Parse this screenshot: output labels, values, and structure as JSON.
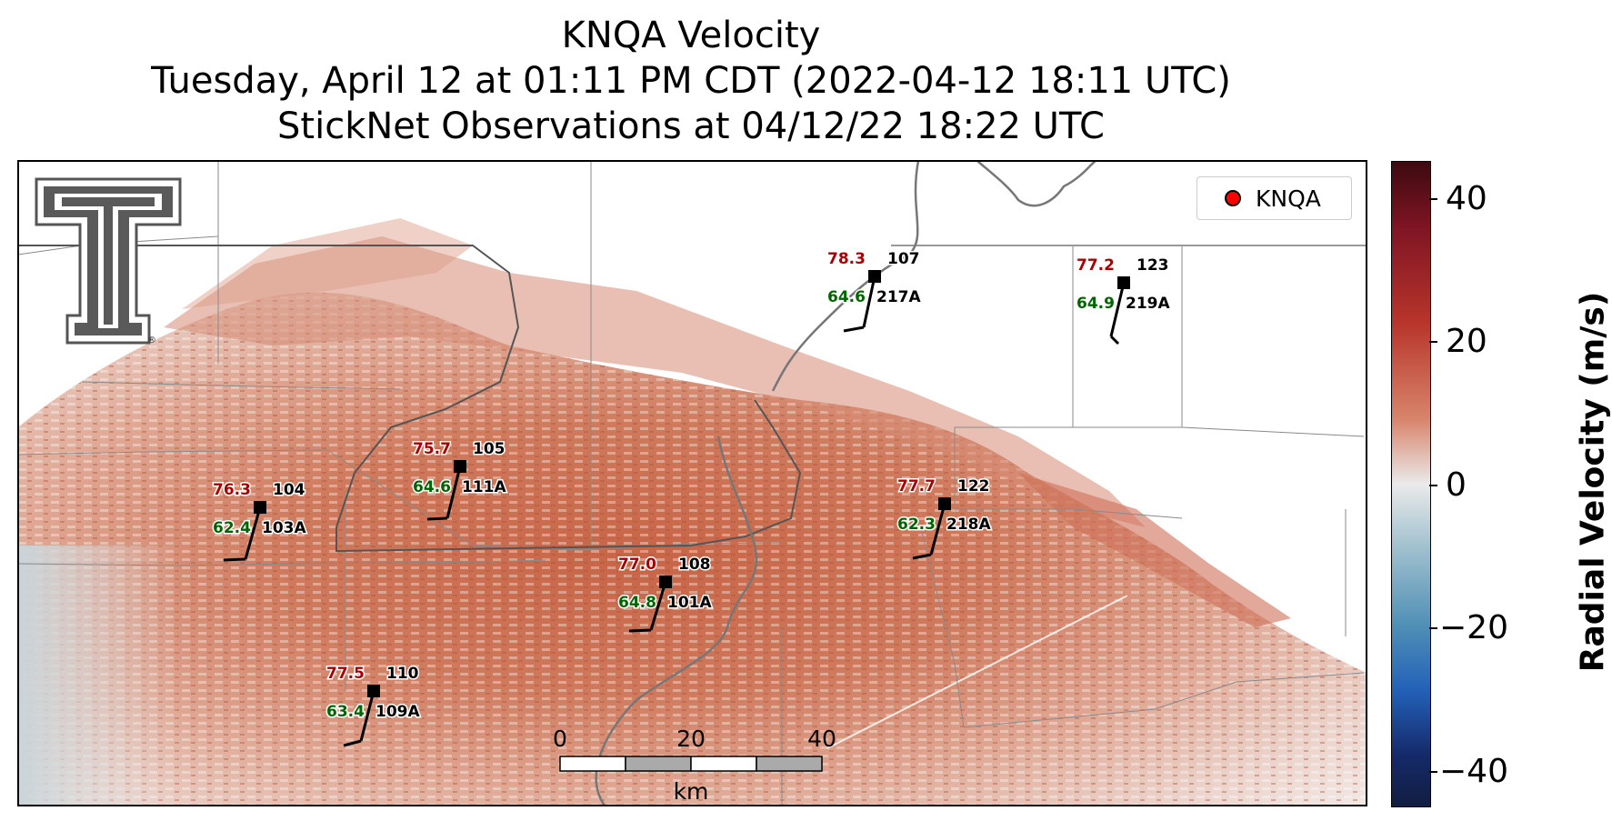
{
  "title": {
    "line1": "KNQA Velocity",
    "line2": "Tuesday, April 12 at 01:11 PM CDT (2022-04-12 18:11 UTC)",
    "line3": "StickNet Observations at 04/12/22 18:22 UTC"
  },
  "legend": {
    "label": "KNQA",
    "marker_color": "#ff0000"
  },
  "logo": {
    "icon": "texas-tech-double-t-icon",
    "registered_mark": "®"
  },
  "colorbar": {
    "label": "Radial Velocity (m/s)",
    "ticks": [
      "40",
      "20",
      "0",
      "−20",
      "−40"
    ],
    "range": [
      -45,
      45
    ]
  },
  "scalebar": {
    "ticks": [
      "0",
      "20",
      "40"
    ],
    "unit": "km"
  },
  "colors": {
    "temp": "#aa0000",
    "dewpoint": "#006400",
    "id": "#000000",
    "velocity_high": "#c0573e"
  },
  "stations": [
    {
      "id": "107",
      "probe": "217A",
      "temp": "78.3",
      "dewpoint": "64.6"
    },
    {
      "id": "123",
      "probe": "219A",
      "temp": "77.2",
      "dewpoint": "64.9"
    },
    {
      "id": "105",
      "probe": "111A",
      "temp": "75.7",
      "dewpoint": "64.6"
    },
    {
      "id": "104",
      "probe": "103A",
      "temp": "76.3",
      "dewpoint": "62.4"
    },
    {
      "id": "122",
      "probe": "218A",
      "temp": "77.7",
      "dewpoint": "62.3"
    },
    {
      "id": "108",
      "probe": "101A",
      "temp": "77.0",
      "dewpoint": "64.8"
    },
    {
      "id": "110",
      "probe": "109A",
      "temp": "77.5",
      "dewpoint": "63.4"
    }
  ]
}
